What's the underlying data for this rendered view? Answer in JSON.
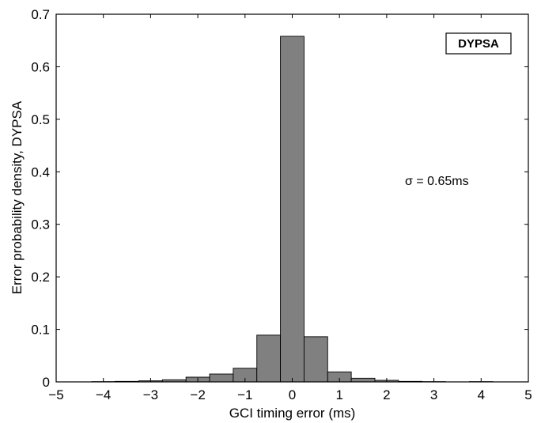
{
  "chart_data": {
    "type": "bar",
    "xlabel": "GCI timing error (ms)",
    "ylabel": "Error probability density, DYPSA",
    "xlim": [
      -5,
      5
    ],
    "ylim": [
      0,
      0.7
    ],
    "xticks": [
      "−5",
      "−4",
      "−3",
      "−2",
      "−1",
      "0",
      "1",
      "2",
      "3",
      "4",
      "5"
    ],
    "yticks": [
      "0",
      "0.1",
      "0.2",
      "0.3",
      "0.4",
      "0.5",
      "0.6",
      "0.7"
    ],
    "bin_width": 0.5,
    "bin_centers": [
      -4.5,
      -4.0,
      -3.5,
      -3.0,
      -2.5,
      -2.0,
      -1.5,
      -1.0,
      -0.5,
      0.0,
      0.5,
      1.0,
      1.5,
      2.0,
      2.5,
      3.0,
      3.5,
      4.0,
      4.5
    ],
    "values": [
      0.0,
      0.0005,
      0.001,
      0.002,
      0.004,
      0.009,
      0.015,
      0.026,
      0.089,
      0.658,
      0.086,
      0.019,
      0.007,
      0.003,
      0.001,
      0.0005,
      0.0,
      0.0005,
      0.0
    ],
    "bar_color": "#808080",
    "grid": false,
    "legend": {
      "label": "DYPSA",
      "placement": "top-right"
    },
    "annotation": "σ = 0.65ms"
  }
}
